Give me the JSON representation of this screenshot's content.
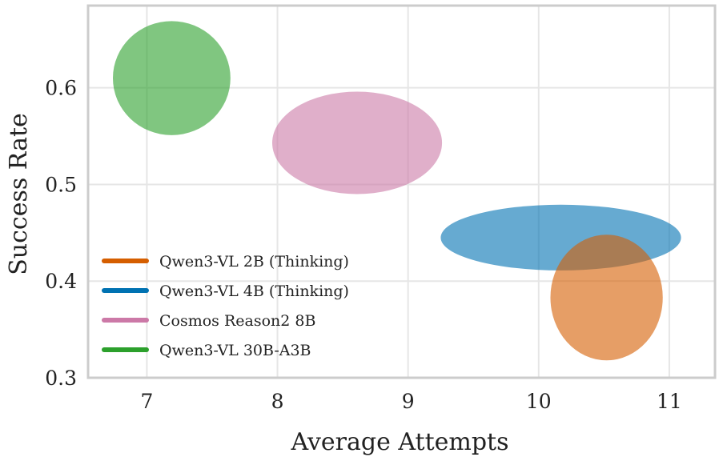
{
  "chart_data": {
    "type": "scatter",
    "title": "",
    "xlabel": "Average Attempts",
    "ylabel": "Success Rate",
    "xlim": [
      6.55,
      11.35
    ],
    "ylim": [
      0.3,
      0.685
    ],
    "xticks": [
      7,
      8,
      9,
      10,
      11
    ],
    "yticks": [
      0.3,
      0.4,
      0.5,
      0.6
    ],
    "grid": true,
    "legend_position": "lower-left",
    "series": [
      {
        "name": "Qwen3-VL 2B (Thinking)",
        "color": "#d55e00",
        "center": [
          10.52,
          0.383
        ],
        "x_spread": 0.43,
        "y_spread": 0.065
      },
      {
        "name": "Qwen3-VL 4B (Thinking)",
        "color": "#0072b2",
        "center": [
          10.17,
          0.445
        ],
        "x_spread": 0.92,
        "y_spread": 0.034
      },
      {
        "name": "Cosmos Reason2 8B",
        "color": "#cc79a7",
        "center": [
          8.61,
          0.543
        ],
        "x_spread": 0.65,
        "y_spread": 0.053
      },
      {
        "name": "Qwen3-VL 30B-A3B",
        "color": "#2ca02c",
        "center": [
          7.19,
          0.61
        ],
        "x_spread": 0.45,
        "y_spread": 0.059
      }
    ]
  }
}
